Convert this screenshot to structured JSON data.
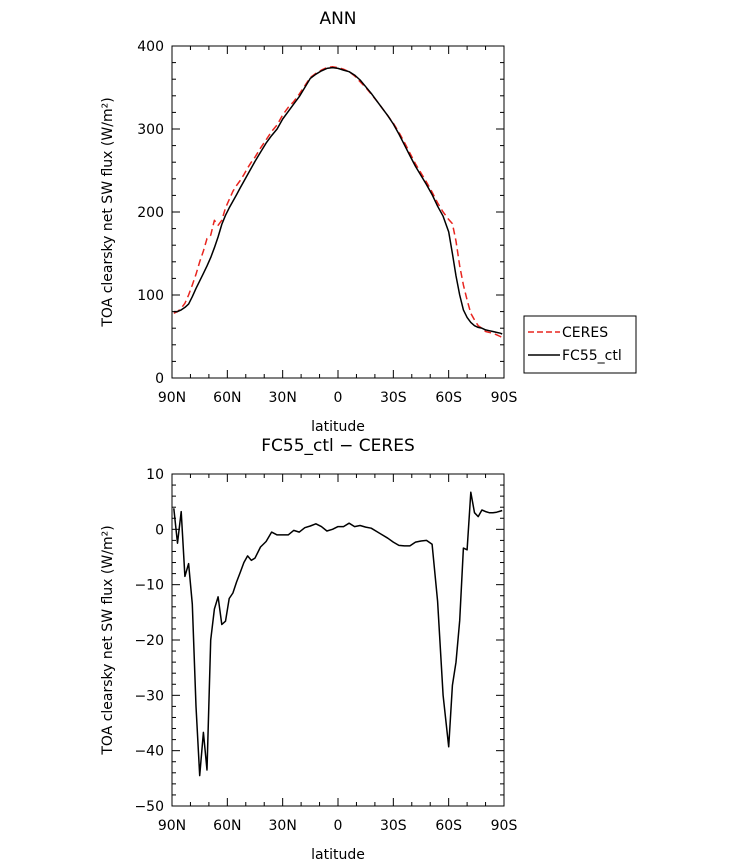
{
  "chart_data": [
    {
      "type": "line",
      "title": "ANN",
      "xlabel": "latitude",
      "ylabel": "TOA clearsky net SW flux (W/m²)",
      "x_tick_labels": [
        "90N",
        "60N",
        "30N",
        "0",
        "30S",
        "60S",
        "90S"
      ],
      "x_ticks": [
        90,
        60,
        30,
        0,
        -30,
        -60,
        -90
      ],
      "xlim": [
        90,
        -90
      ],
      "y_tick_labels": [
        "0",
        "100",
        "200",
        "300",
        "400"
      ],
      "y_ticks": [
        0,
        100,
        200,
        300,
        400
      ],
      "ylim": [
        0,
        400
      ],
      "grid": false,
      "legend": {
        "placement": "outside-right",
        "entries": [
          {
            "name": "CERES",
            "color": "#e8251f",
            "dash": "dashed"
          },
          {
            "name": "FC55_ctl",
            "color": "#000000",
            "dash": "solid"
          }
        ]
      },
      "series": [
        {
          "name": "CERES",
          "color": "#e8251f",
          "dash": "dashed",
          "x": [
            89,
            87,
            85,
            83,
            81,
            79,
            77,
            75,
            73,
            71,
            69,
            67,
            65,
            63,
            61,
            59,
            57,
            55,
            53,
            51,
            49,
            47,
            45,
            42,
            39,
            36,
            33,
            30,
            27,
            24,
            21,
            18,
            15,
            12,
            9,
            6,
            3,
            0,
            -3,
            -6,
            -9,
            -12,
            -15,
            -18,
            -21,
            -24,
            -27,
            -30,
            -33,
            -36,
            -39,
            -42,
            -45,
            -48,
            -51,
            -54,
            -57,
            -60,
            -62,
            -64,
            -66,
            -68,
            -70,
            -72,
            -74,
            -76,
            -78,
            -80,
            -82,
            -84,
            -86,
            -88,
            -89
          ],
          "values": [
            78,
            80,
            84,
            90,
            100,
            112,
            125,
            140,
            153,
            168,
            172,
            190,
            184,
            190,
            205,
            215,
            225,
            232,
            238,
            245,
            253,
            260,
            266,
            277,
            287,
            297,
            305,
            317,
            326,
            333,
            342,
            352,
            362,
            367,
            371,
            374,
            375,
            374,
            372,
            369,
            364,
            357,
            350,
            342,
            334,
            325,
            316,
            307,
            296,
            284,
            271,
            258,
            247,
            236,
            224,
            211,
            200,
            191,
            186,
            165,
            135,
            112,
            94,
            78,
            70,
            63,
            60,
            56,
            55,
            54,
            52,
            50,
            49
          ]
        },
        {
          "name": "FC55_ctl",
          "color": "#000000",
          "dash": "solid",
          "x": [
            89,
            87,
            85,
            83,
            81,
            79,
            77,
            75,
            73,
            71,
            69,
            67,
            65,
            63,
            61,
            59,
            57,
            55,
            53,
            51,
            49,
            47,
            45,
            42,
            39,
            36,
            33,
            30,
            27,
            24,
            21,
            18,
            15,
            12,
            9,
            6,
            3,
            0,
            -3,
            -6,
            -9,
            -12,
            -15,
            -18,
            -21,
            -24,
            -27,
            -30,
            -33,
            -36,
            -39,
            -42,
            -45,
            -48,
            -51,
            -54,
            -57,
            -60,
            -62,
            -64,
            -66,
            -68,
            -70,
            -72,
            -74,
            -76,
            -78,
            -80,
            -82,
            -84,
            -86,
            -88,
            -89
          ],
          "values": [
            80,
            80,
            82,
            85,
            89,
            98,
            108,
            117,
            126,
            135,
            145,
            157,
            170,
            185,
            196,
            205,
            213,
            221,
            229,
            237,
            245,
            253,
            261,
            272,
            283,
            292,
            300,
            312,
            321,
            330,
            339,
            350,
            361,
            366,
            370,
            373,
            374,
            373,
            371,
            369,
            365,
            359,
            351,
            343,
            334,
            325,
            316,
            306,
            294,
            281,
            268,
            255,
            244,
            233,
            221,
            207,
            195,
            176,
            150,
            123,
            100,
            82,
            73,
            67,
            63,
            61,
            60,
            58,
            57,
            56,
            55,
            54,
            53
          ]
        }
      ]
    },
    {
      "type": "line",
      "title": "FC55_ctl − CERES",
      "xlabel": "latitude",
      "ylabel": "TOA clearsky net SW flux (W/m²)",
      "x_tick_labels": [
        "90N",
        "60N",
        "30N",
        "0",
        "30S",
        "60S",
        "90S"
      ],
      "x_ticks": [
        90,
        60,
        30,
        0,
        -30,
        -60,
        -90
      ],
      "xlim": [
        90,
        -90
      ],
      "y_tick_labels": [
        "10",
        "0",
        "−10",
        "−20",
        "−30",
        "−40",
        "−50"
      ],
      "y_ticks": [
        10,
        0,
        -10,
        -20,
        -30,
        -40,
        -50
      ],
      "ylim": [
        -50,
        10
      ],
      "grid": false,
      "series": [
        {
          "color": "#000000",
          "dash": "solid",
          "x": [
            89,
            87,
            85,
            83,
            81,
            79,
            77,
            75,
            73,
            71,
            69,
            67,
            65,
            63,
            61,
            59,
            57,
            55,
            53,
            51,
            49,
            47,
            45,
            42,
            39,
            36,
            33,
            30,
            27,
            24,
            21,
            18,
            15,
            12,
            9,
            6,
            3,
            0,
            -3,
            -6,
            -9,
            -12,
            -15,
            -18,
            -21,
            -24,
            -27,
            -30,
            -33,
            -36,
            -39,
            -42,
            -45,
            -48,
            -51,
            -54,
            -57,
            -60,
            -62,
            -64,
            -66,
            -68,
            -70,
            -72,
            -74,
            -76,
            -78,
            -80,
            -82,
            -84,
            -86,
            -88,
            -89
          ],
          "values": [
            3.8,
            -2.5,
            3.2,
            -8.5,
            -6.2,
            -13.5,
            -32,
            -44.5,
            -36.7,
            -43.5,
            -20,
            -14.4,
            -12.2,
            -17.2,
            -16.6,
            -12.5,
            -11.5,
            -9.5,
            -7.8,
            -6.0,
            -4.8,
            -5.6,
            -5.2,
            -3.2,
            -2.2,
            -0.5,
            -1,
            -1,
            -1,
            -0.2,
            -0.5,
            0.3,
            0.6,
            1.0,
            0.5,
            -0.3,
            0,
            0.5,
            0.5,
            1.1,
            0.5,
            0.7,
            0.4,
            0.2,
            -0.4,
            -1.0,
            -1.6,
            -2.3,
            -2.9,
            -3.0,
            -3.0,
            -2.3,
            -2.1,
            -2.0,
            -2.7,
            -13,
            -30,
            -39.3,
            -28.2,
            -24,
            -16.5,
            -3.4,
            -3.7,
            6.7,
            3.0,
            2.3,
            3.5,
            3.2,
            3.0,
            3.0,
            3.1,
            3.3,
            3.4
          ]
        }
      ]
    }
  ]
}
